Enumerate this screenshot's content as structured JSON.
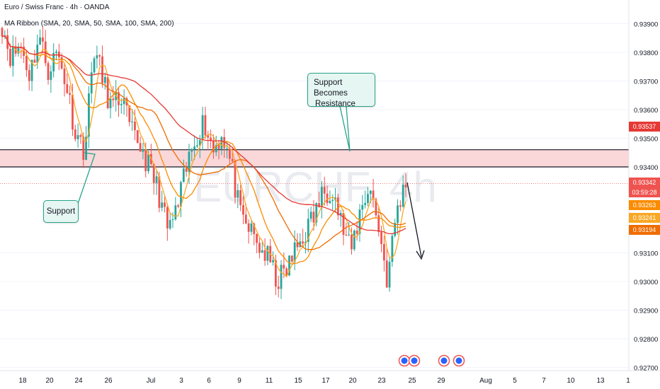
{
  "header": {
    "symbol_line": "Euro / Swiss Franc · 4h · OANDA",
    "indicator_line": "MA Ribbon (SMA, 20, SMA, 50, SMA, 100, SMA, 200)"
  },
  "watermark": "EURCHF, 4h",
  "annotations": {
    "support": "Support",
    "resistance_line1": "Support Becomes",
    "resistance_line2": "Resistance"
  },
  "price_labels": {
    "ma200": "0.93537",
    "last": "0.93342",
    "countdown": "03:59:28",
    "ma20": "0.93263",
    "ma50": "0.93241",
    "ma100": "0.93194"
  },
  "colors": {
    "up": "#26a69a",
    "down": "#ef5350",
    "ma20": "#f9a825",
    "ma50": "#fb8c00",
    "ma100": "#ef6c00",
    "ma200": "#e53935",
    "zone": "#f8c9cc",
    "annot_border": "#29a38b"
  },
  "chart_data": {
    "type": "candlestick",
    "symbol": "EURCHF",
    "timeframe": "4h",
    "y_ticks": [
      0.939,
      0.938,
      0.937,
      0.936,
      0.935,
      0.934,
      0.931,
      0.93,
      0.929,
      0.928,
      0.927
    ],
    "ylim": [
      0.927,
      0.9395
    ],
    "x_ticks": [
      "18",
      "20",
      "24",
      "26",
      "Jul",
      "3",
      "6",
      "9",
      "11",
      "15",
      "17",
      "20",
      "23",
      "25",
      "29",
      "Aug",
      "5",
      "7",
      "10",
      "13",
      "1"
    ],
    "resistance_zone": [
      0.934,
      0.9346
    ],
    "series_close_approx": [
      0.939,
      0.9378,
      0.9383,
      0.9372,
      0.9386,
      0.9374,
      0.938,
      0.9369,
      0.9352,
      0.9346,
      0.9382,
      0.937,
      0.936,
      0.9365,
      0.9352,
      0.9348,
      0.934,
      0.9332,
      0.9318,
      0.9324,
      0.9338,
      0.935,
      0.9356,
      0.9346,
      0.9352,
      0.934,
      0.9322,
      0.9318,
      0.9312,
      0.9308,
      0.93,
      0.9304,
      0.9311,
      0.9317,
      0.9323,
      0.9331,
      0.9333,
      0.932,
      0.931,
      0.9324,
      0.9334,
      0.932,
      0.93,
      0.9325,
      0.9334
    ],
    "moving_averages": [
      {
        "name": "SMA 20"
      },
      {
        "name": "SMA 50"
      },
      {
        "name": "SMA 100"
      },
      {
        "name": "SMA 200"
      }
    ]
  }
}
